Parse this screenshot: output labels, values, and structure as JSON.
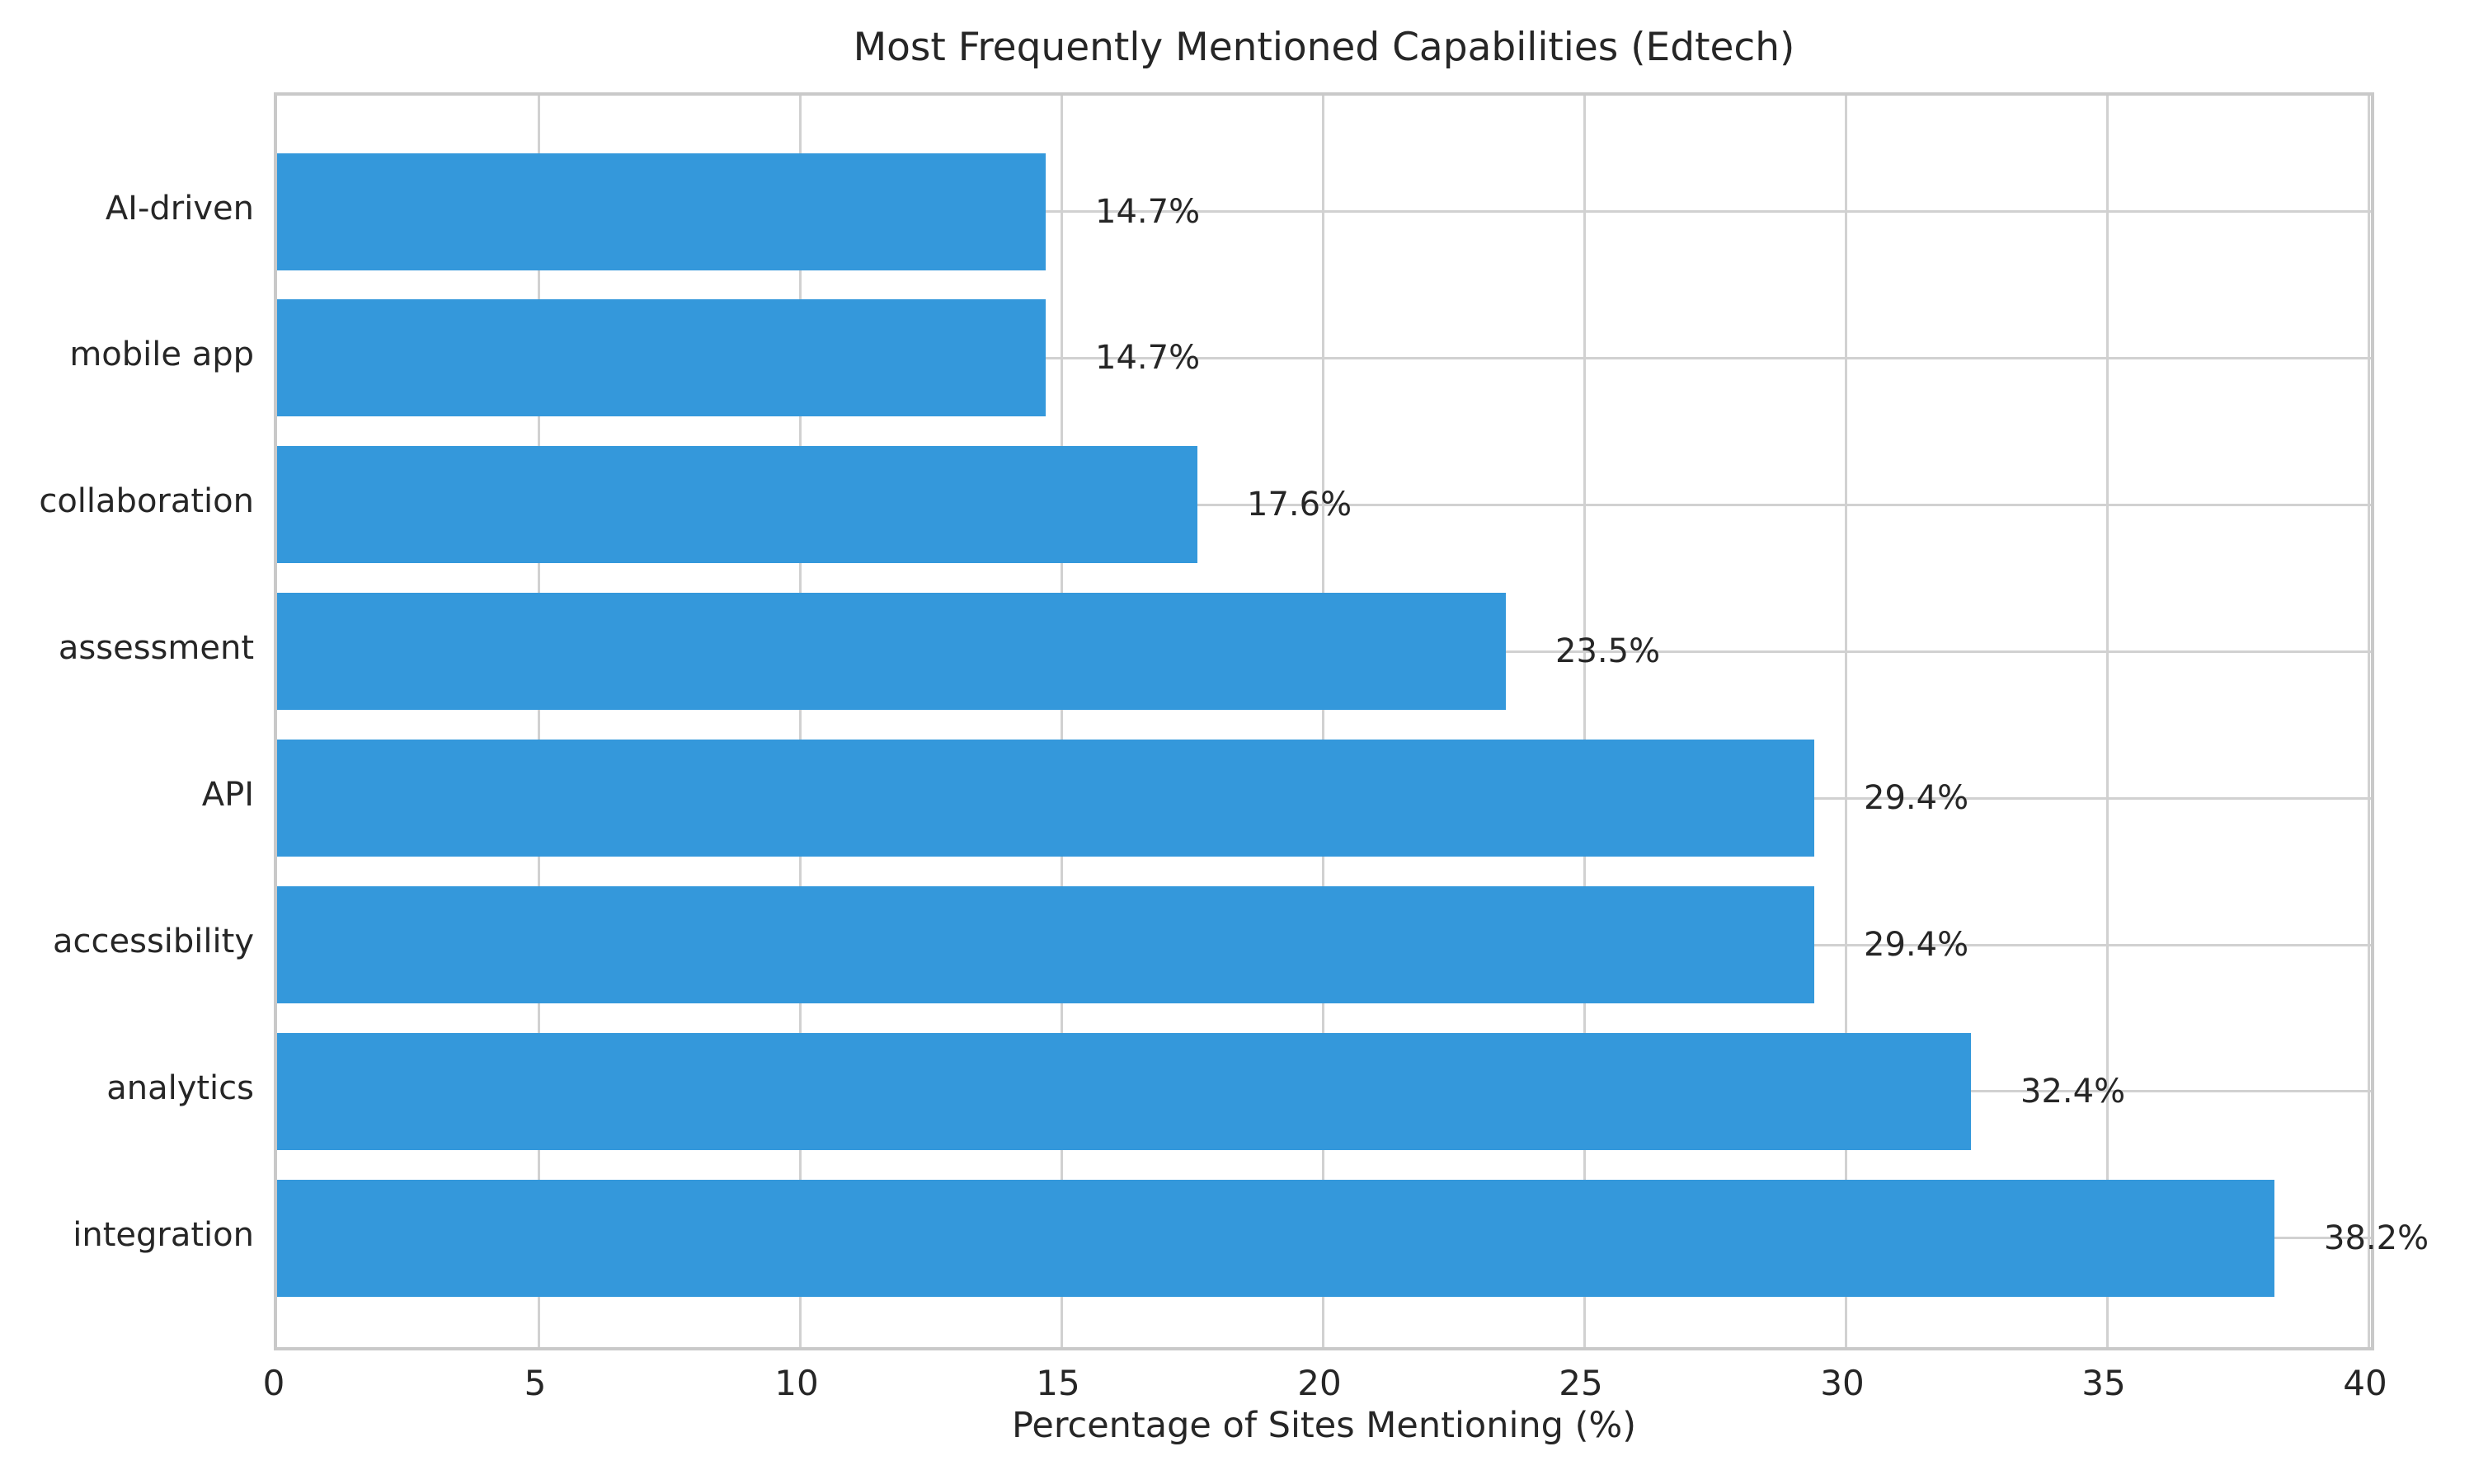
{
  "title": "Most Frequently Mentioned Capabilities (Edtech)",
  "xlabel": "Percentage of Sites Mentioning (%)",
  "chart_data": {
    "type": "bar",
    "orientation": "horizontal",
    "title": "Most Frequently Mentioned Capabilities (Edtech)",
    "xlabel": "Percentage of Sites Mentioning (%)",
    "ylabel": "",
    "categories": [
      "AI-driven",
      "mobile app",
      "collaboration",
      "assessment",
      "API",
      "accessibility",
      "analytics",
      "integration"
    ],
    "values": [
      14.7,
      14.7,
      17.6,
      23.5,
      29.4,
      29.4,
      32.4,
      38.2
    ],
    "value_labels": [
      "14.7%",
      "14.7%",
      "17.6%",
      "23.5%",
      "29.4%",
      "29.4%",
      "32.4%",
      "38.2%"
    ],
    "xlim": [
      0,
      40
    ],
    "xticks": [
      0,
      5,
      10,
      15,
      20,
      25,
      30,
      35,
      40
    ],
    "grid": true,
    "legend": "none",
    "bar_color": "#3498db",
    "grid_color": "#d1d1d1",
    "spine_color": "#c9c9c9",
    "text_color": "#262626",
    "background_color": "#ffffff"
  }
}
